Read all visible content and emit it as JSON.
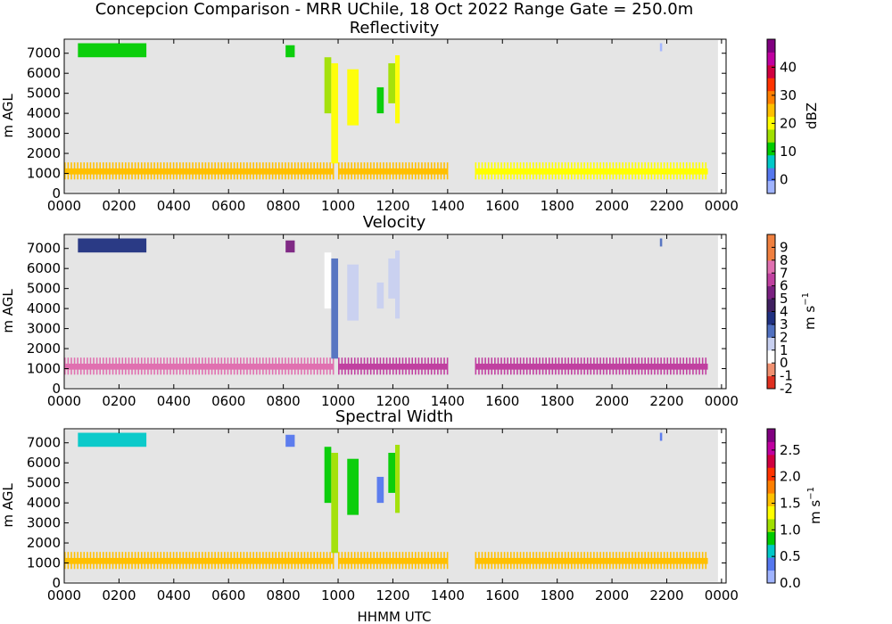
{
  "figure": {
    "title": "Concepcion Comparison - MRR UChile, 18 Oct 2022 Range Gate = 250.0m",
    "xlabel": "HHMM UTC"
  },
  "chart_data": [
    {
      "type": "heatmap",
      "title": "Reflectivity",
      "ylabel": "m AGL",
      "xticks": [
        "0000",
        "0200",
        "0400",
        "0600",
        "0800",
        "1000",
        "1200",
        "1400",
        "1600",
        "1800",
        "2000",
        "2200",
        "0000"
      ],
      "yticks": [
        0,
        1000,
        2000,
        3000,
        4000,
        5000,
        6000,
        7000
      ],
      "ylim": [
        0,
        7700
      ],
      "colorbar": {
        "label": "dBZ",
        "range": [
          -5,
          50
        ],
        "ticks": [
          0,
          10,
          20,
          30,
          40
        ],
        "colors": [
          "#a0b4ff",
          "#5577ee",
          "#00c8c8",
          "#00cc00",
          "#a0e000",
          "#ffff00",
          "#ffc000",
          "#ff7f00",
          "#ff3300",
          "#d00040",
          "#c000a0",
          "#800080"
        ]
      },
      "features": [
        {
          "kind": "band",
          "height_m": 1100,
          "start_hhmm": "0000",
          "end_hhmm": "0950",
          "value": 27
        },
        {
          "kind": "band",
          "height_m": 1100,
          "start_hhmm": "1000",
          "end_hhmm": "1400",
          "value": 25
        },
        {
          "kind": "band",
          "height_m": 1100,
          "start_hhmm": "1500",
          "end_hhmm": "2330",
          "value": 20
        },
        {
          "kind": "patch",
          "start_hhmm": "0030",
          "end_hhmm": "0300",
          "bottom_m": 6800,
          "top_m": 7500,
          "value": 12
        },
        {
          "kind": "patch",
          "start_hhmm": "0805",
          "end_hhmm": "0825",
          "bottom_m": 6800,
          "top_m": 7400,
          "value": 10
        },
        {
          "kind": "patch",
          "start_hhmm": "0930",
          "end_hhmm": "0945",
          "bottom_m": 4000,
          "top_m": 6800,
          "value": 16
        },
        {
          "kind": "patch",
          "start_hhmm": "0945",
          "end_hhmm": "1000",
          "bottom_m": 1500,
          "top_m": 6500,
          "value": 20
        },
        {
          "kind": "patch",
          "start_hhmm": "1020",
          "end_hhmm": "1045",
          "bottom_m": 3400,
          "top_m": 6200,
          "value": 18
        },
        {
          "kind": "patch",
          "start_hhmm": "1125",
          "end_hhmm": "1140",
          "bottom_m": 4000,
          "top_m": 5300,
          "value": 12
        },
        {
          "kind": "patch",
          "start_hhmm": "1150",
          "end_hhmm": "1205",
          "bottom_m": 4500,
          "top_m": 6500,
          "value": 14
        },
        {
          "kind": "patch",
          "start_hhmm": "1205",
          "end_hhmm": "1215",
          "bottom_m": 3500,
          "top_m": 6900,
          "value": 18
        },
        {
          "kind": "patch",
          "start_hhmm": "2145",
          "end_hhmm": "2150",
          "bottom_m": 7100,
          "top_m": 7500,
          "value": -3
        }
      ]
    },
    {
      "type": "heatmap",
      "title": "Velocity",
      "ylabel": "m s^-1 / m AGL",
      "yaxis_label": "m AGL",
      "colorbar_label_main": "m s",
      "colorbar_label_exp": "−1",
      "xticks": [
        "0000",
        "0200",
        "0400",
        "0600",
        "0800",
        "1000",
        "1200",
        "1400",
        "1600",
        "1800",
        "2000",
        "2200",
        "0000"
      ],
      "yticks": [
        0,
        1000,
        2000,
        3000,
        4000,
        5000,
        6000,
        7000
      ],
      "ylim": [
        0,
        7700
      ],
      "colorbar": {
        "range": [
          -2,
          10
        ],
        "ticks": [
          -2,
          -1,
          0,
          1,
          2,
          3,
          4,
          5,
          6,
          7,
          8,
          9
        ],
        "colors": [
          "#e03020",
          "#f09070",
          "#ffffff",
          "#c8d0f0",
          "#5070c0",
          "#203080",
          "#402060",
          "#7a2080",
          "#c040a0",
          "#e070b0",
          "#f08040",
          "#f08040"
        ]
      },
      "features": [
        {
          "kind": "band",
          "height_m": 1100,
          "start_hhmm": "0000",
          "end_hhmm": "0950",
          "value": 7.5
        },
        {
          "kind": "band",
          "height_m": 1100,
          "start_hhmm": "1000",
          "end_hhmm": "1400",
          "value": 6
        },
        {
          "kind": "band",
          "height_m": 1100,
          "start_hhmm": "1500",
          "end_hhmm": "2330",
          "value": 6.5
        },
        {
          "kind": "patch",
          "start_hhmm": "0030",
          "end_hhmm": "0300",
          "bottom_m": 6800,
          "top_m": 7500,
          "value": 3.5
        },
        {
          "kind": "patch",
          "start_hhmm": "0805",
          "end_hhmm": "0825",
          "bottom_m": 6800,
          "top_m": 7400,
          "value": 5
        },
        {
          "kind": "patch",
          "start_hhmm": "0930",
          "end_hhmm": "0945",
          "bottom_m": 4000,
          "top_m": 6800,
          "value": 0.5
        },
        {
          "kind": "patch",
          "start_hhmm": "0945",
          "end_hhmm": "1000",
          "bottom_m": 1500,
          "top_m": 6500,
          "value": 2.5
        },
        {
          "kind": "patch",
          "start_hhmm": "1020",
          "end_hhmm": "1045",
          "bottom_m": 3400,
          "top_m": 6200,
          "value": 1.5
        },
        {
          "kind": "patch",
          "start_hhmm": "1125",
          "end_hhmm": "1140",
          "bottom_m": 4000,
          "top_m": 5300,
          "value": 1.2
        },
        {
          "kind": "patch",
          "start_hhmm": "1150",
          "end_hhmm": "1205",
          "bottom_m": 4500,
          "top_m": 6500,
          "value": 1
        },
        {
          "kind": "patch",
          "start_hhmm": "1205",
          "end_hhmm": "1215",
          "bottom_m": 3500,
          "top_m": 6900,
          "value": 1.5
        },
        {
          "kind": "patch",
          "start_hhmm": "2145",
          "end_hhmm": "2150",
          "bottom_m": 7100,
          "top_m": 7500,
          "value": 2.5
        }
      ]
    },
    {
      "type": "heatmap",
      "title": "Spectral Width",
      "yaxis_label": "m AGL",
      "colorbar_label_main": "m s",
      "colorbar_label_exp": "−1",
      "xticks": [
        "0000",
        "0200",
        "0400",
        "0600",
        "0800",
        "1000",
        "1200",
        "1400",
        "1600",
        "1800",
        "2000",
        "2200",
        "0000"
      ],
      "yticks": [
        0,
        1000,
        2000,
        3000,
        4000,
        5000,
        6000,
        7000
      ],
      "ylim": [
        0,
        7700
      ],
      "colorbar": {
        "range": [
          0,
          2.9
        ],
        "ticks": [
          "0.0",
          "0.5",
          "1.0",
          "1.5",
          "2.0",
          "2.5"
        ],
        "colors": [
          "#a0b4ff",
          "#5577ee",
          "#00c8c8",
          "#00cc00",
          "#a0e000",
          "#ffff00",
          "#ffc000",
          "#ff7f00",
          "#ff3300",
          "#d00040",
          "#c000a0",
          "#800080"
        ]
      },
      "features": [
        {
          "kind": "band",
          "height_m": 1100,
          "start_hhmm": "0000",
          "end_hhmm": "0950",
          "value": 1.5
        },
        {
          "kind": "band",
          "height_m": 1100,
          "start_hhmm": "1000",
          "end_hhmm": "1400",
          "value": 1.6
        },
        {
          "kind": "band",
          "height_m": 1100,
          "start_hhmm": "1500",
          "end_hhmm": "2330",
          "value": 1.5
        },
        {
          "kind": "patch",
          "start_hhmm": "0030",
          "end_hhmm": "0300",
          "bottom_m": 6800,
          "top_m": 7500,
          "value": 0.5
        },
        {
          "kind": "patch",
          "start_hhmm": "0805",
          "end_hhmm": "0825",
          "bottom_m": 6800,
          "top_m": 7400,
          "value": 0.4
        },
        {
          "kind": "patch",
          "start_hhmm": "0930",
          "end_hhmm": "0945",
          "bottom_m": 4000,
          "top_m": 6800,
          "value": 0.9
        },
        {
          "kind": "patch",
          "start_hhmm": "0945",
          "end_hhmm": "1000",
          "bottom_m": 1500,
          "top_m": 6500,
          "value": 1.0
        },
        {
          "kind": "patch",
          "start_hhmm": "1020",
          "end_hhmm": "1045",
          "bottom_m": 3400,
          "top_m": 6200,
          "value": 0.9
        },
        {
          "kind": "patch",
          "start_hhmm": "1125",
          "end_hhmm": "1140",
          "bottom_m": 4000,
          "top_m": 5300,
          "value": 0.4
        },
        {
          "kind": "patch",
          "start_hhmm": "1150",
          "end_hhmm": "1205",
          "bottom_m": 4500,
          "top_m": 6500,
          "value": 0.9
        },
        {
          "kind": "patch",
          "start_hhmm": "1205",
          "end_hhmm": "1215",
          "bottom_m": 3500,
          "top_m": 6900,
          "value": 1.2
        },
        {
          "kind": "patch",
          "start_hhmm": "2145",
          "end_hhmm": "2150",
          "bottom_m": 7100,
          "top_m": 7500,
          "value": 0.4
        }
      ]
    }
  ]
}
